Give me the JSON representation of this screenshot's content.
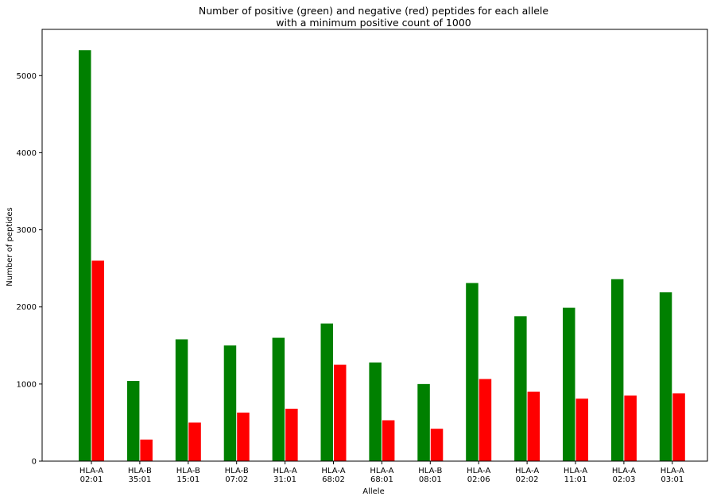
{
  "chart_data": {
    "type": "bar",
    "title": "Number of positive (green) and negative (red) peptides for each allele",
    "subtitle": "with a minimum positive count of 1000",
    "xlabel": "Allele",
    "ylabel": "Number of peptides",
    "ylim": [
      0,
      5600
    ],
    "yticks": [
      0,
      1000,
      2000,
      3000,
      4000,
      5000
    ],
    "grid": false,
    "categories": [
      "HLA-A\n02:01",
      "HLA-B\n35:01",
      "HLA-B\n15:01",
      "HLA-B\n07:02",
      "HLA-A\n31:01",
      "HLA-A\n68:02",
      "HLA-A\n68:01",
      "HLA-B\n08:01",
      "HLA-A\n02:06",
      "HLA-A\n02:02",
      "HLA-A\n11:01",
      "HLA-A\n02:03",
      "HLA-A\n03:01"
    ],
    "series": [
      {
        "key": "positive",
        "color": "#008000",
        "values": [
          5330,
          1040,
          1580,
          1500,
          1600,
          1785,
          1280,
          1000,
          2310,
          1880,
          1990,
          2360,
          2190
        ]
      },
      {
        "key": "negative",
        "color": "#ff0000",
        "values": [
          2600,
          280,
          500,
          630,
          680,
          1250,
          530,
          420,
          1065,
          900,
          810,
          850,
          880
        ]
      }
    ]
  }
}
